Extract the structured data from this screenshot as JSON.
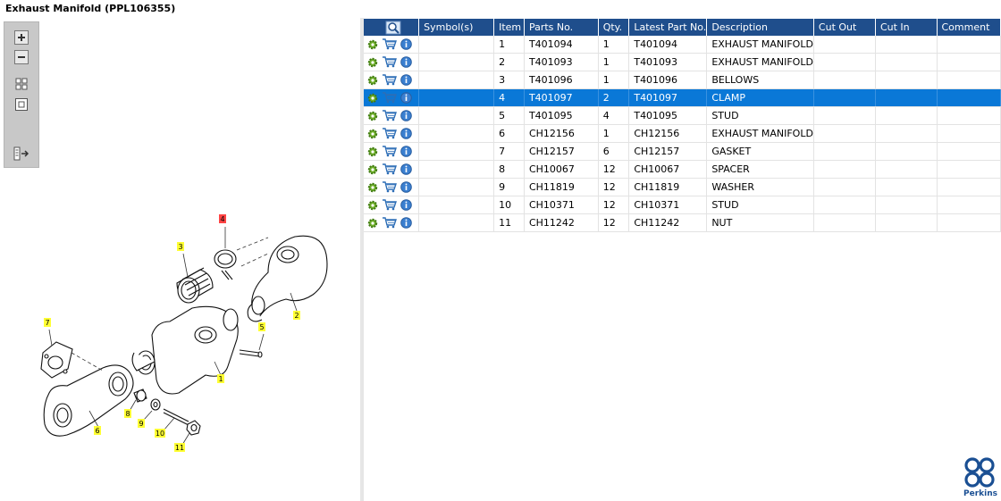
{
  "window": {
    "title": "Exhaust Manifold (PPL106355)"
  },
  "toolbar": {
    "icons": [
      "zoom-in-icon",
      "zoom-out-icon",
      "grid-view-icon",
      "fit-view-icon",
      "toggle-list-icon"
    ]
  },
  "colors": {
    "header_bg": "#1f4e8c",
    "selected_row": "#0a78d7",
    "callout_yellow": "#ffff33",
    "callout_red": "#ff4444"
  },
  "diagram": {
    "callouts": [
      {
        "label": "4",
        "highlight": true
      },
      {
        "label": "3",
        "highlight": false
      },
      {
        "label": "2",
        "highlight": false
      },
      {
        "label": "5",
        "highlight": false
      },
      {
        "label": "7",
        "highlight": false
      },
      {
        "label": "1",
        "highlight": false
      },
      {
        "label": "8",
        "highlight": false
      },
      {
        "label": "9",
        "highlight": false
      },
      {
        "label": "6",
        "highlight": false
      },
      {
        "label": "10",
        "highlight": false
      },
      {
        "label": "11",
        "highlight": false
      }
    ]
  },
  "table": {
    "columns": [
      "Symbol(s)",
      "Item",
      "Parts No.",
      "Qty.",
      "Latest Part No.",
      "Description",
      "Cut Out",
      "Cut In",
      "Comment"
    ],
    "selected_index": 3,
    "rows": [
      {
        "symbol": "",
        "item": "1",
        "part": "T401094",
        "qty": "1",
        "latest": "T401094",
        "desc": "EXHAUST MANIFOLD",
        "cut_out": "",
        "cut_in": "",
        "comment": ""
      },
      {
        "symbol": "",
        "item": "2",
        "part": "T401093",
        "qty": "1",
        "latest": "T401093",
        "desc": "EXHAUST MANIFOLD",
        "cut_out": "",
        "cut_in": "",
        "comment": ""
      },
      {
        "symbol": "",
        "item": "3",
        "part": "T401096",
        "qty": "1",
        "latest": "T401096",
        "desc": "BELLOWS",
        "cut_out": "",
        "cut_in": "",
        "comment": ""
      },
      {
        "symbol": "",
        "item": "4",
        "part": "T401097",
        "qty": "2",
        "latest": "T401097",
        "desc": "CLAMP",
        "cut_out": "",
        "cut_in": "",
        "comment": ""
      },
      {
        "symbol": "",
        "item": "5",
        "part": "T401095",
        "qty": "4",
        "latest": "T401095",
        "desc": "STUD",
        "cut_out": "",
        "cut_in": "",
        "comment": ""
      },
      {
        "symbol": "",
        "item": "6",
        "part": "CH12156",
        "qty": "1",
        "latest": "CH12156",
        "desc": "EXHAUST MANIFOLD",
        "cut_out": "",
        "cut_in": "",
        "comment": ""
      },
      {
        "symbol": "",
        "item": "7",
        "part": "CH12157",
        "qty": "6",
        "latest": "CH12157",
        "desc": "GASKET",
        "cut_out": "",
        "cut_in": "",
        "comment": ""
      },
      {
        "symbol": "",
        "item": "8",
        "part": "CH10067",
        "qty": "12",
        "latest": "CH10067",
        "desc": "SPACER",
        "cut_out": "",
        "cut_in": "",
        "comment": ""
      },
      {
        "symbol": "",
        "item": "9",
        "part": "CH11819",
        "qty": "12",
        "latest": "CH11819",
        "desc": "WASHER",
        "cut_out": "",
        "cut_in": "",
        "comment": ""
      },
      {
        "symbol": "",
        "item": "10",
        "part": "CH10371",
        "qty": "12",
        "latest": "CH10371",
        "desc": "STUD",
        "cut_out": "",
        "cut_in": "",
        "comment": ""
      },
      {
        "symbol": "",
        "item": "11",
        "part": "CH11242",
        "qty": "12",
        "latest": "CH11242",
        "desc": "NUT",
        "cut_out": "",
        "cut_in": "",
        "comment": ""
      }
    ]
  },
  "logo": {
    "text": "Perkins"
  }
}
